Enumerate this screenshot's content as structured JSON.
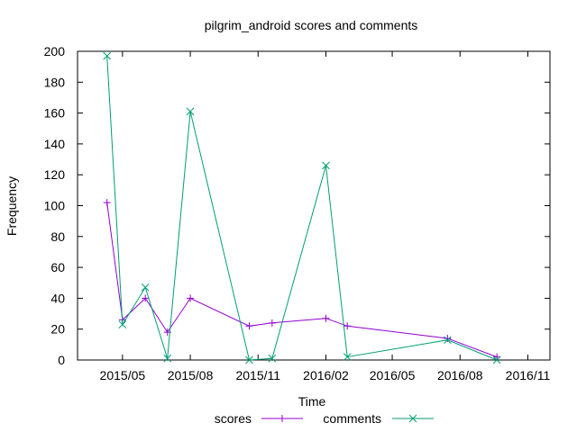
{
  "chart_data": {
    "type": "line",
    "title": "pilgrim_android scores and comments",
    "xlabel": "Time",
    "ylabel": "Frequency",
    "x_ticks": [
      "2015/05",
      "2015/08",
      "2015/11",
      "2016/02",
      "2016/05",
      "2016/08",
      "2016/11"
    ],
    "x_range": [
      "2015-03-01",
      "2016-12-01"
    ],
    "y_ticks": [
      "0",
      "20",
      "40",
      "60",
      "80",
      "100",
      "120",
      "140",
      "160",
      "180",
      "200"
    ],
    "ylim": [
      0,
      200
    ],
    "grid": false,
    "legend_position": "bottom",
    "series": [
      {
        "name": "scores",
        "color": "#9400d3",
        "marker": "plus",
        "points": [
          {
            "x": "2015-04-10",
            "y": 102
          },
          {
            "x": "2015-05-01",
            "y": 26
          },
          {
            "x": "2015-06-01",
            "y": 40
          },
          {
            "x": "2015-07-01",
            "y": 18
          },
          {
            "x": "2015-08-01",
            "y": 40
          },
          {
            "x": "2015-10-20",
            "y": 22
          },
          {
            "x": "2015-11-20",
            "y": 24
          },
          {
            "x": "2016-02-01",
            "y": 27
          },
          {
            "x": "2016-03-01",
            "y": 22
          },
          {
            "x": "2016-07-15",
            "y": 14
          },
          {
            "x": "2016-09-20",
            "y": 2
          }
        ]
      },
      {
        "name": "comments",
        "color": "#009e73",
        "marker": "cross",
        "points": [
          {
            "x": "2015-04-10",
            "y": 197
          },
          {
            "x": "2015-05-01",
            "y": 23
          },
          {
            "x": "2015-06-01",
            "y": 47
          },
          {
            "x": "2015-07-01",
            "y": 1
          },
          {
            "x": "2015-08-01",
            "y": 161
          },
          {
            "x": "2015-10-20",
            "y": 0
          },
          {
            "x": "2015-11-20",
            "y": 1
          },
          {
            "x": "2016-02-01",
            "y": 126
          },
          {
            "x": "2016-03-01",
            "y": 2
          },
          {
            "x": "2016-07-15",
            "y": 13
          },
          {
            "x": "2016-09-20",
            "y": 0
          }
        ]
      }
    ]
  }
}
